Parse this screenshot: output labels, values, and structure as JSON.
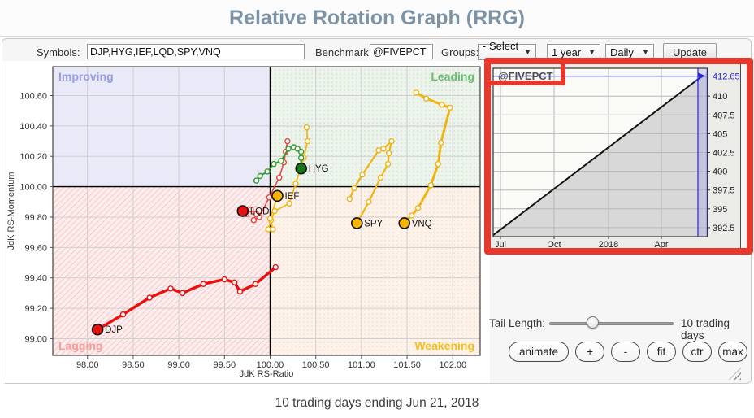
{
  "header": {
    "title": "Relative Rotation Graph (RRG)"
  },
  "toolbar": {
    "symbols_label": "Symbols:",
    "symbols_value": "DJP,HYG,IEF,LQD,SPY,VNQ",
    "benchmark_label": "Benchmark:",
    "benchmark_value": "@FIVEPCT",
    "groups_label": "Groups:",
    "groups_value": "- Select -",
    "period_value": "1 year",
    "frequency_value": "Daily",
    "update_label": "Update"
  },
  "controls": {
    "tail_length_label": "Tail Length:",
    "tail_length_value": "10 trading days",
    "buttons": [
      "animate",
      "+",
      "-",
      "fit",
      "ctr",
      "max"
    ]
  },
  "footer": {
    "caption": "10 trading days ending Jun 21, 2018"
  },
  "colors": {
    "annotation_red": "#e6382c",
    "benchmark_blue": "#2929cf",
    "title_color": "#7c93a6"
  },
  "chart_data": [
    {
      "type": "scatter",
      "name": "rrg",
      "xlabel": "JdK RS-Ratio",
      "ylabel": "JdK RS-Momentum",
      "xlim": [
        97.62,
        102.3
      ],
      "ylim": [
        98.89,
        100.79
      ],
      "center": [
        100.0,
        100.0
      ],
      "x_ticks": [
        "98.00",
        "98.50",
        "99.00",
        "99.50",
        "100.00",
        "100.50",
        "101.00",
        "101.50",
        "102.00"
      ],
      "y_ticks": [
        "99.00",
        "99.20",
        "99.40",
        "99.60",
        "99.80",
        "100.00",
        "100.20",
        "100.40",
        "100.60"
      ],
      "tail_days": 10,
      "quadrants": [
        {
          "label": "Improving",
          "corner": "top_left",
          "label_color": "#959ce3",
          "bg": "#e9e9f8",
          "pattern": "none"
        },
        {
          "label": "Leading",
          "corner": "top_right",
          "label_color": "#6cbd6c",
          "bg": "#ecf4ec",
          "pattern": "dots_green"
        },
        {
          "label": "Lagging",
          "corner": "bottom_left",
          "label_color": "#fc9a9a",
          "bg": "#fdeded",
          "pattern": "hatch_pink"
        },
        {
          "label": "Weakening",
          "corner": "bottom_right",
          "label_color": "#f3c01e",
          "bg": "#fdf2ea",
          "pattern": "dots_tan"
        }
      ],
      "series": [
        {
          "name": "DJP",
          "color": "#e81010",
          "dot_color": "#e81010",
          "width": 3.5,
          "points": [
            [
              100.06,
              99.47
            ],
            [
              99.84,
              99.36
            ],
            [
              99.67,
              99.31
            ],
            [
              99.61,
              99.37
            ],
            [
              99.5,
              99.39
            ],
            [
              99.27,
              99.36
            ],
            [
              99.04,
              99.3
            ],
            [
              98.91,
              99.33
            ],
            [
              98.68,
              99.27
            ],
            [
              98.39,
              99.16
            ],
            [
              98.11,
              99.06
            ]
          ]
        },
        {
          "name": "LQD",
          "color": "#ea4343",
          "dot_color": "#e81010",
          "width": 1.6,
          "points": [
            [
              100.19,
              100.3
            ],
            [
              100.17,
              100.23
            ],
            [
              100.15,
              100.16
            ],
            [
              100.1,
              100.06
            ],
            [
              99.99,
              99.93
            ],
            [
              99.88,
              99.8
            ],
            [
              99.82,
              99.78
            ],
            [
              99.85,
              99.82
            ],
            [
              99.79,
              99.85
            ],
            [
              99.74,
              99.82
            ],
            [
              99.7,
              99.84
            ]
          ]
        },
        {
          "name": "IEF",
          "color": "#f0b411",
          "dot_color": "#f7b500",
          "width": 1.6,
          "points": [
            [
              100.4,
              100.39
            ],
            [
              100.41,
              100.3
            ],
            [
              100.37,
              100.19
            ],
            [
              100.28,
              100.02
            ],
            [
              100.21,
              99.89
            ],
            [
              100.05,
              99.84
            ],
            [
              100.01,
              99.78
            ],
            [
              99.98,
              99.72
            ],
            [
              100.03,
              99.72
            ],
            [
              100.0,
              99.79
            ],
            [
              100.08,
              99.94
            ]
          ]
        },
        {
          "name": "HYG",
          "color": "#2d9b2d",
          "dot_color": "#157815",
          "width": 2,
          "points": [
            [
              99.85,
              100.04
            ],
            [
              99.89,
              100.07
            ],
            [
              99.97,
              100.1
            ],
            [
              100.04,
              100.15
            ],
            [
              100.12,
              100.17
            ],
            [
              100.2,
              100.25
            ],
            [
              100.26,
              100.26
            ],
            [
              100.3,
              100.25
            ],
            [
              100.34,
              100.23
            ],
            [
              100.34,
              100.19
            ],
            [
              100.34,
              100.12
            ]
          ]
        },
        {
          "name": "SPY",
          "color": "#f0b411",
          "dot_color": "#f7b500",
          "width": 2.2,
          "points": [
            [
              100.87,
              99.92
            ],
            [
              100.92,
              99.99
            ],
            [
              101.01,
              100.08
            ],
            [
              101.19,
              100.24
            ],
            [
              101.24,
              100.25
            ],
            [
              101.33,
              100.3
            ],
            [
              101.3,
              100.22
            ],
            [
              101.29,
              100.15
            ],
            [
              101.21,
              100.06
            ],
            [
              101.08,
              99.9
            ],
            [
              100.95,
              99.76
            ]
          ]
        },
        {
          "name": "VNQ",
          "color": "#f0b411",
          "dot_color": "#f7b500",
          "width": 3,
          "points": [
            [
              101.6,
              100.62
            ],
            [
              101.71,
              100.58
            ],
            [
              101.88,
              100.54
            ],
            [
              101.97,
              100.52
            ],
            [
              101.87,
              100.29
            ],
            [
              101.84,
              100.15
            ],
            [
              101.76,
              100.01
            ],
            [
              101.62,
              99.86
            ],
            [
              101.55,
              99.81
            ],
            [
              101.49,
              99.78
            ],
            [
              101.47,
              99.76
            ]
          ]
        }
      ]
    },
    {
      "type": "line",
      "name": "benchmark",
      "symbol": "@FIVEPCT",
      "ylim": [
        391.3,
        413.7
      ],
      "start_value": 391.5,
      "end_value": 412.65,
      "last_value_label": "412.65",
      "y_ticks": [
        "410",
        "407.5",
        "405",
        "402.5",
        "400",
        "397.5",
        "395",
        "392.5"
      ],
      "x_ticks": [
        {
          "label": "Jul",
          "pos": 0.034
        },
        {
          "label": "Oct",
          "pos": 0.284
        },
        {
          "label": "2018",
          "pos": 0.538
        },
        {
          "label": "Apr",
          "pos": 0.784
        }
      ],
      "line_color": "#111111",
      "highlight_color": "#2929cf",
      "area_color": "#d8d8d8"
    }
  ]
}
